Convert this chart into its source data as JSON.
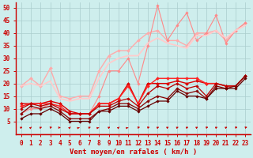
{
  "xlabel": "Vent moyen/en rafales ( km/h )",
  "xlim": [
    -0.5,
    23.5
  ],
  "ylim": [
    0,
    52
  ],
  "yticks": [
    5,
    10,
    15,
    20,
    25,
    30,
    35,
    40,
    45,
    50
  ],
  "xticks": [
    0,
    1,
    2,
    3,
    4,
    5,
    6,
    7,
    8,
    9,
    10,
    11,
    12,
    13,
    14,
    15,
    16,
    17,
    18,
    19,
    20,
    21,
    22,
    23
  ],
  "bg_color": "#ceeeed",
  "lines": [
    {
      "x": [
        0,
        1,
        2,
        3,
        4,
        5,
        6,
        7,
        8,
        9,
        10,
        11,
        12,
        13,
        14,
        15,
        16,
        17,
        18,
        19,
        20,
        21,
        22,
        23
      ],
      "y": [
        19,
        22,
        19,
        26,
        15,
        14,
        15,
        15,
        25,
        31,
        33,
        33,
        37,
        40,
        41,
        37,
        37,
        35,
        40,
        40,
        41,
        37,
        41,
        44
      ],
      "color": "#ffaaaa",
      "lw": 1.0,
      "marker": "D",
      "ms": 2.0
    },
    {
      "x": [
        0,
        1,
        2,
        3,
        4,
        5,
        6,
        7,
        8,
        9,
        10,
        11,
        12,
        13,
        14,
        15,
        16,
        17,
        18,
        19,
        20,
        21,
        22,
        23
      ],
      "y": [
        8,
        10,
        10,
        12,
        10,
        8,
        8,
        8,
        15,
        25,
        25,
        30,
        20,
        35,
        51,
        37,
        43,
        48,
        37,
        40,
        47,
        36,
        41,
        44
      ],
      "color": "#ff8888",
      "lw": 0.8,
      "marker": "D",
      "ms": 1.8
    },
    {
      "x": [
        0,
        1,
        2,
        3,
        4,
        5,
        6,
        7,
        8,
        9,
        10,
        11,
        12,
        13,
        14,
        15,
        16,
        17,
        18,
        19,
        20,
        21,
        22,
        23
      ],
      "y": [
        19,
        20,
        19,
        21,
        14,
        13,
        14,
        14,
        22,
        28,
        30,
        31,
        31,
        36,
        38,
        36,
        35,
        34,
        39,
        39,
        41,
        38,
        41,
        43
      ],
      "color": "#ffcccc",
      "lw": 1.3,
      "marker": null,
      "ms": 0
    },
    {
      "x": [
        0,
        1,
        2,
        3,
        4,
        5,
        6,
        7,
        8,
        9,
        10,
        11,
        12,
        13,
        14,
        15,
        16,
        17,
        18,
        19,
        20,
        21,
        22,
        23
      ],
      "y": [
        12,
        12,
        12,
        13,
        12,
        9,
        8,
        8,
        12,
        12,
        14,
        20,
        12,
        20,
        20,
        20,
        21,
        20,
        21,
        20,
        20,
        19,
        19,
        23
      ],
      "color": "#dd0000",
      "lw": 1.0,
      "marker": "D",
      "ms": 2.0
    },
    {
      "x": [
        0,
        1,
        2,
        3,
        4,
        5,
        6,
        7,
        8,
        9,
        10,
        11,
        12,
        13,
        14,
        15,
        16,
        17,
        18,
        19,
        20,
        21,
        22,
        23
      ],
      "y": [
        11,
        12,
        12,
        12,
        11,
        8,
        8,
        8,
        12,
        12,
        14,
        19,
        12,
        19,
        22,
        22,
        22,
        22,
        22,
        20,
        20,
        19,
        19,
        23
      ],
      "color": "#ff2222",
      "lw": 1.0,
      "marker": "D",
      "ms": 2.0
    },
    {
      "x": [
        0,
        1,
        2,
        3,
        4,
        5,
        6,
        7,
        8,
        9,
        10,
        11,
        12,
        13,
        14,
        15,
        16,
        17,
        18,
        19,
        20,
        21,
        22,
        23
      ],
      "y": [
        10,
        12,
        11,
        12,
        10,
        8,
        8,
        8,
        11,
        11,
        13,
        14,
        11,
        16,
        19,
        18,
        20,
        18,
        19,
        15,
        20,
        19,
        19,
        23
      ],
      "color": "#bb0000",
      "lw": 0.9,
      "marker": "D",
      "ms": 1.8
    },
    {
      "x": [
        0,
        1,
        2,
        3,
        4,
        5,
        6,
        7,
        8,
        9,
        10,
        11,
        12,
        13,
        14,
        15,
        16,
        17,
        18,
        19,
        20,
        21,
        22,
        23
      ],
      "y": [
        8,
        11,
        10,
        11,
        9,
        6,
        6,
        6,
        9,
        10,
        12,
        12,
        10,
        13,
        15,
        14,
        18,
        16,
        17,
        14,
        19,
        18,
        19,
        23
      ],
      "color": "#880000",
      "lw": 0.9,
      "marker": "D",
      "ms": 1.8
    },
    {
      "x": [
        0,
        1,
        2,
        3,
        4,
        5,
        6,
        7,
        8,
        9,
        10,
        11,
        12,
        13,
        14,
        15,
        16,
        17,
        18,
        19,
        20,
        21,
        22,
        23
      ],
      "y": [
        6,
        8,
        8,
        10,
        8,
        5,
        5,
        5,
        9,
        9,
        11,
        11,
        9,
        11,
        13,
        13,
        17,
        15,
        15,
        14,
        18,
        18,
        18,
        22
      ],
      "color": "#660000",
      "lw": 0.9,
      "marker": "D",
      "ms": 1.8
    }
  ],
  "wind_arrow_angles": [
    210,
    200,
    210,
    220,
    270,
    200,
    230,
    210,
    230,
    210,
    200,
    230,
    220,
    220,
    210,
    210,
    210,
    210,
    210,
    220,
    210,
    210,
    220,
    220
  ],
  "arrow_color": "#cc0000",
  "grid_color": "#aacccc",
  "spine_color": "#cc0000",
  "tick_color": "#cc0000",
  "label_color": "#cc0000",
  "tick_fontsize": 5.5,
  "xlabel_fontsize": 6.5
}
